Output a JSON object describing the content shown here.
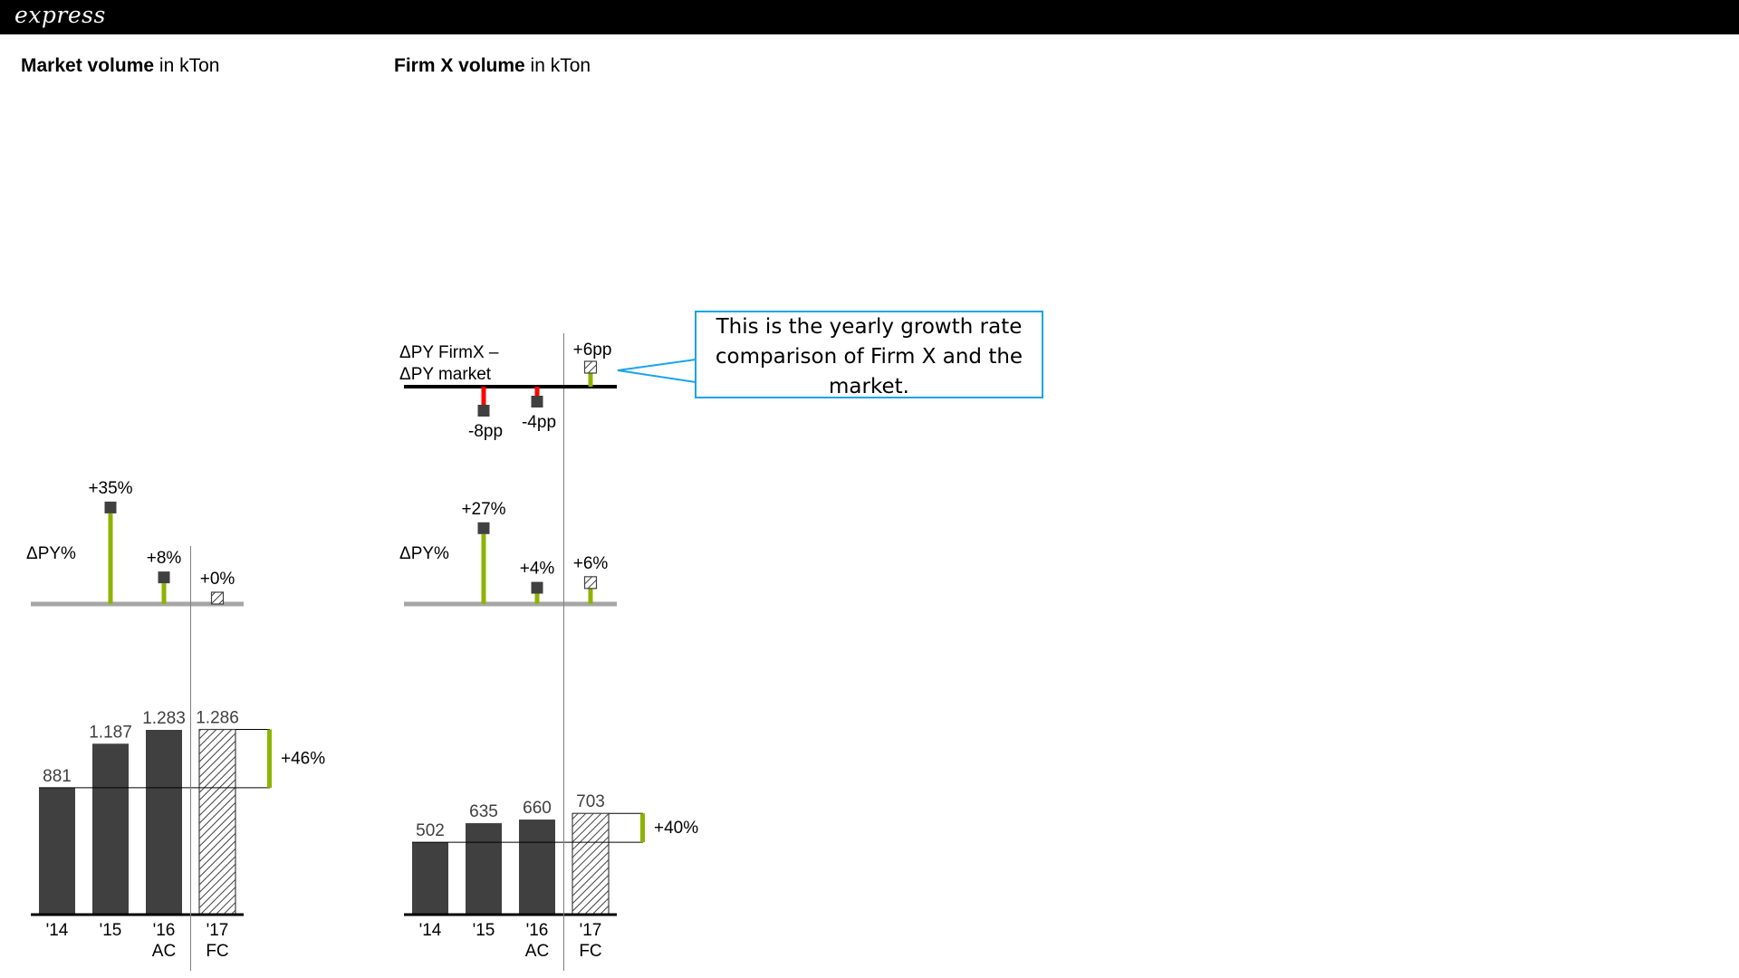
{
  "header": {
    "brand": "express"
  },
  "colors": {
    "bar": "#404040",
    "positive": "#8cb400",
    "negative": "#ff0000",
    "axis_light": "#a6a6a6",
    "axis_dark": "#000000",
    "callout_border": "#1aa3e8"
  },
  "callout": {
    "text": "This is the yearly growth rate comparison of Firm X and the market."
  },
  "chart_data": [
    {
      "type": "bar",
      "title_bold": "Market volume",
      "title_rest": " in kTon",
      "categories": [
        "'14",
        "'15",
        "'16",
        "'17"
      ],
      "scenario_labels": [
        "",
        "",
        "AC",
        "FC"
      ],
      "values": [
        881,
        1187,
        1283,
        1286
      ],
      "value_labels": [
        "881",
        "1.187",
        "1.283",
        "1.286"
      ],
      "forecast_index": 3,
      "difference": {
        "from_index": 0,
        "to_index": 3,
        "label": "+46%"
      },
      "delta_py_percent": {
        "label": "ΔPY%",
        "values": [
          null,
          35,
          8,
          0
        ],
        "value_labels": [
          "",
          "+35%",
          "+8%",
          "+0%"
        ]
      }
    },
    {
      "type": "bar",
      "title_bold": "Firm X volume",
      "title_rest": " in kTon",
      "categories": [
        "'14",
        "'15",
        "'16",
        "'17"
      ],
      "scenario_labels": [
        "",
        "",
        "AC",
        "FC"
      ],
      "values": [
        502,
        635,
        660,
        703
      ],
      "value_labels": [
        "502",
        "635",
        "660",
        "703"
      ],
      "forecast_index": 3,
      "difference": {
        "from_index": 0,
        "to_index": 3,
        "label": "+40%"
      },
      "delta_py_percent": {
        "label": "ΔPY%",
        "values": [
          null,
          27,
          4,
          6
        ],
        "value_labels": [
          "",
          "+27%",
          "+4%",
          "+6%"
        ]
      },
      "delta_vs_market_pp": {
        "label_line1": "ΔPY FirmX –",
        "label_line2": "ΔPY market",
        "values": [
          null,
          -8,
          -4,
          6
        ],
        "value_labels": [
          "",
          "-8pp",
          "-4pp",
          "+6pp"
        ]
      }
    }
  ]
}
